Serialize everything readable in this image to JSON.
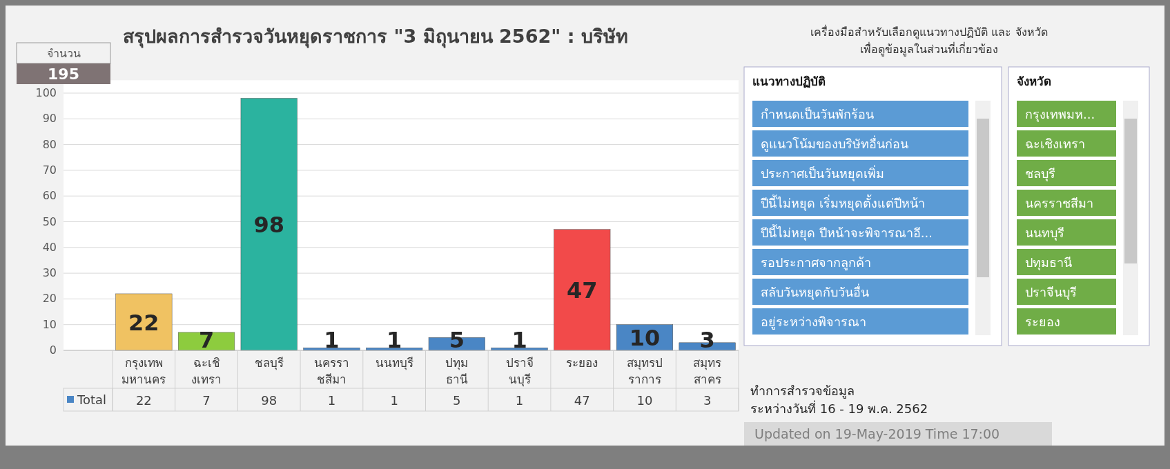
{
  "chart_data": [
    {
      "type": "other",
      "title": "จำนวน",
      "annotations": [
        "195"
      ]
    },
    {
      "type": "bar",
      "title": "สรุปผลการสำรวจวันหยุดราชการ \"3 มิถุนายน 2562\" : บริษัท",
      "categories": [
        "กรุงเทพมหานคร",
        "ฉะเชิงเทรา",
        "ชลบุรี",
        "นครราชสีมา",
        "นนทบุรี",
        "ปทุมธานี",
        "ปราจีนบุรี",
        "ระยอง",
        "สมุทรปราการ",
        "สมุทรสาคร"
      ],
      "series": [
        {
          "name": "Total",
          "color": "#4a86c5",
          "values": [
            22,
            7,
            98,
            1,
            1,
            5,
            1,
            47,
            10,
            3
          ],
          "colors": [
            "#f0c262",
            "#8dcc3e",
            "#2bb39f",
            "#4a86c5",
            "#4a86c5",
            "#4a86c5",
            "#4a86c5",
            "#f24a4a",
            "#4a86c5",
            "#4a86c5"
          ]
        }
      ],
      "value_labels": [
        "22",
        "7",
        "98",
        "1",
        "1",
        "5",
        "1",
        "47",
        "10",
        "3"
      ],
      "ylim": [
        0,
        105
      ],
      "yticks": [
        0,
        10,
        20,
        30,
        40,
        50,
        60,
        70,
        80,
        90,
        100
      ],
      "grid": "y",
      "data_labels": true,
      "legend": "bottom",
      "annotations": [
        "ทำการสำรวจข้อมูล",
        "ระหว่างวันที่ 16 - 19  พ.ค. 2562",
        "Updated on 19-May-2019  Time 17:00"
      ]
    },
    {
      "type": "other",
      "subtitle": "เครื่องมือสำหรับเลือกดูแนวทางปฏิบัติ และ จังหวัด เพื่อดูข้อมูลในส่วนที่เกี่ยวข้อง",
      "title": "แนวทางปฏิบัติ",
      "annotations": [
        "กำหนดเป็นวันพักร้อน",
        "ดูแนวโน้มของบริษัทอื่นก่อน",
        "ประกาศเป็นวันหยุดเพิ่ม",
        "ปีนี้ไม่หยุด เริ่มหยุดตั้งแต่ปีหน้า",
        "ปีนี้ไม่หยุด ปีหน้าจะพิจารณาอี...",
        "รอประกาศจากลูกค้า",
        "สลับวันหยุดกับวันอื่น",
        "อยู่ระหว่างพิจารณา"
      ],
      "color": "#5b9bd5"
    },
    {
      "type": "other",
      "title": "จังหวัด",
      "annotations": [
        "กรุงเทพมห...",
        "ฉะเชิงเทรา",
        "ชลบุรี",
        "นครราชสีมา",
        "นนทบุรี",
        "ปทุมธานี",
        "ปราจีนบุรี",
        "ระยอง"
      ],
      "color": "#70ad47"
    }
  ]
}
